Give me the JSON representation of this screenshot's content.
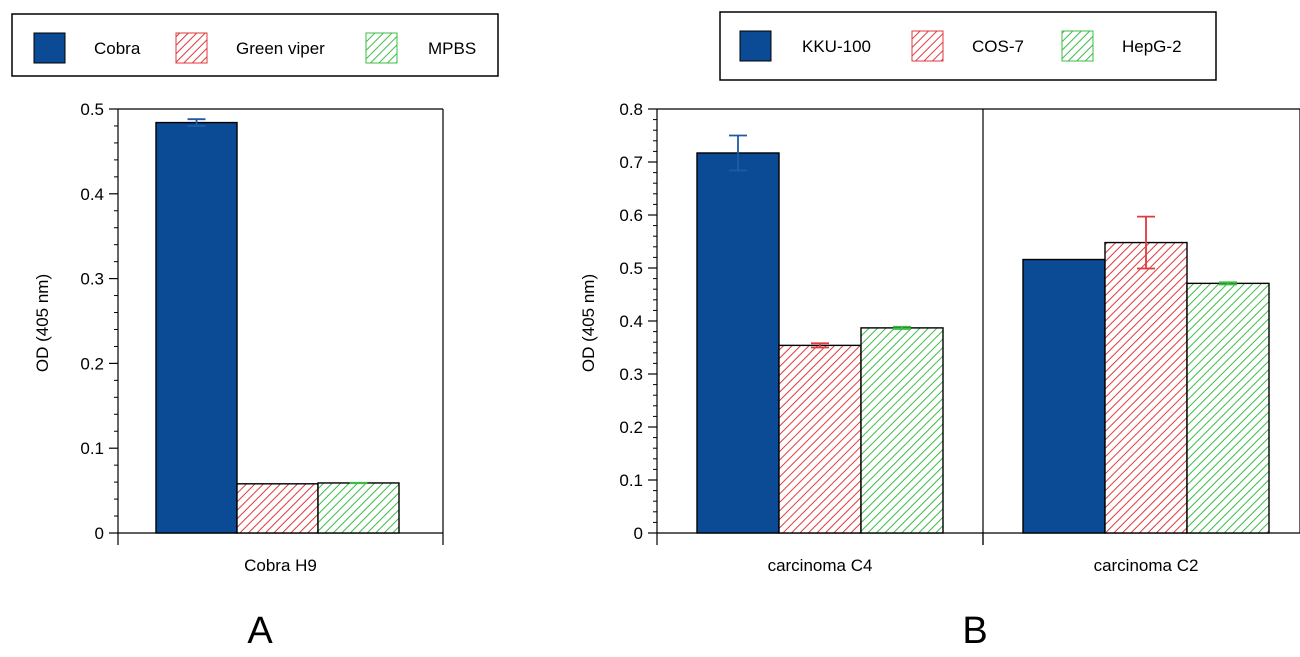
{
  "colors": {
    "blue": "#0b4a94",
    "blue_err": "#1f5aa6",
    "red_hatch": "#e0393e",
    "green_hatch": "#3cbc46",
    "axis": "#000000"
  },
  "chart_data": [
    {
      "type": "bar",
      "panel_label": "A",
      "categories": [
        "Cobra H9"
      ],
      "ylabel": "OD (405 nm)",
      "xlabel": "",
      "ylim": [
        0,
        0.5
      ],
      "yticks": [
        0,
        0.1,
        0.2,
        0.3,
        0.4,
        0.5
      ],
      "ytick_labels": [
        "0",
        "0.1",
        "0.2",
        "0.3",
        "0.4",
        "0.5"
      ],
      "legend": [
        "Cobra",
        "Green viper",
        "MPBS"
      ],
      "legend_position": "top",
      "grid": false,
      "series": [
        {
          "name": "Cobra",
          "style": "solid-blue",
          "values": [
            0.484
          ],
          "errors": [
            0.004
          ]
        },
        {
          "name": "Green viper",
          "style": "hatch-red",
          "values": [
            0.058
          ],
          "errors": [
            0.0
          ]
        },
        {
          "name": "MPBS",
          "style": "hatch-green",
          "values": [
            0.059
          ],
          "errors": [
            0.001
          ]
        }
      ]
    },
    {
      "type": "bar",
      "panel_label": "B",
      "categories": [
        "carcinoma C4",
        "carcinoma C2"
      ],
      "ylabel": "OD (405 nm)",
      "xlabel": "",
      "ylim": [
        0,
        0.8
      ],
      "yticks": [
        0,
        0.1,
        0.2,
        0.3,
        0.4,
        0.5,
        0.6,
        0.7,
        0.8
      ],
      "ytick_labels": [
        "0",
        "0.1",
        "0.2",
        "0.3",
        "0.4",
        "0.5",
        "0.6",
        "0.7",
        "0.8"
      ],
      "legend": [
        "KKU-100",
        "COS-7",
        "HepG-2"
      ],
      "legend_position": "top",
      "grid": false,
      "series": [
        {
          "name": "KKU-100",
          "style": "solid-blue",
          "values": [
            0.717,
            0.516
          ],
          "errors": [
            0.033,
            0.0
          ]
        },
        {
          "name": "COS-7",
          "style": "hatch-red",
          "values": [
            0.354,
            0.548
          ],
          "errors": [
            0.004,
            0.049
          ]
        },
        {
          "name": "HepG-2",
          "style": "hatch-green",
          "values": [
            0.387,
            0.471
          ],
          "errors": [
            0.002,
            0.002
          ]
        }
      ]
    }
  ]
}
